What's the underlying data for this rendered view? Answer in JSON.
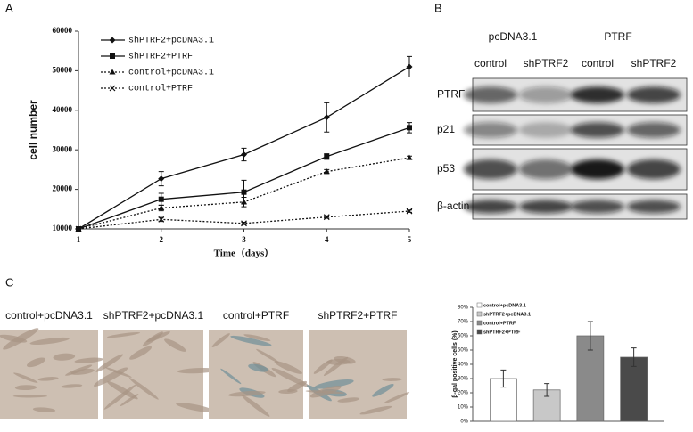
{
  "panels": {
    "a": "A",
    "b": "B",
    "c": "C"
  },
  "blot": {
    "groups": [
      "pcDNA3.1",
      "PTRF"
    ],
    "lanes": [
      "control",
      "shPTRF2",
      "control",
      "shPTRF2"
    ],
    "rows": [
      "PTRF",
      "p21",
      "p53",
      "β-actin"
    ]
  },
  "micrographs": [
    "control+pcDNA3.1",
    "shPTRF2+pcDNA3.1",
    "control+PTRF",
    "shPTRF2+PTRF"
  ],
  "chart_data": [
    {
      "type": "line",
      "x_label": "Time（days）",
      "y_label": "cell number",
      "x": [
        1,
        2,
        3,
        4,
        5
      ],
      "xlim": [
        1,
        5
      ],
      "xticks": [
        1,
        2,
        3,
        4,
        5
      ],
      "ylim": [
        10000,
        60000
      ],
      "yticks": [
        10000,
        20000,
        30000,
        40000,
        50000,
        60000
      ],
      "legend": "upper left",
      "series": [
        {
          "name": "shPTRF2+pcDNA3.1",
          "color": "#111111",
          "marker": "diamond",
          "dashed": false,
          "values": [
            10000,
            22700,
            28800,
            38200,
            51000
          ],
          "errors": [
            0,
            1800,
            1600,
            3700,
            2600
          ]
        },
        {
          "name": "shPTRF2+PTRF",
          "color": "#111111",
          "marker": "square",
          "dashed": false,
          "values": [
            10000,
            17500,
            19300,
            28300,
            35600
          ],
          "errors": [
            0,
            1500,
            3000,
            700,
            1300
          ]
        },
        {
          "name": "control+pcDNA3.1",
          "color": "#111111",
          "marker": "triangle",
          "dashed": true,
          "values": [
            10000,
            15300,
            16800,
            24500,
            28000
          ],
          "errors": [
            0,
            700,
            1200,
            500,
            400
          ]
        },
        {
          "name": "control+PTRF",
          "color": "#111111",
          "marker": "x",
          "dashed": true,
          "values": [
            10000,
            12400,
            11400,
            13000,
            14500
          ],
          "errors": [
            0,
            500,
            300,
            300,
            300
          ]
        }
      ]
    },
    {
      "type": "bar",
      "y_label": "β-gal positive cells (%)",
      "categories": [
        null
      ],
      "ylim": [
        0,
        80
      ],
      "yticks": [
        {
          "value": 0,
          "label": "0%"
        },
        {
          "value": 10,
          "label": "10%"
        },
        {
          "value": 20,
          "label": "20%"
        },
        {
          "value": 30,
          "label": "30%"
        },
        {
          "value": 40,
          "label": "40%"
        },
        {
          "value": 50,
          "label": "50%"
        },
        {
          "value": 60,
          "label": "60%"
        },
        {
          "value": 70,
          "label": "70%"
        },
        {
          "value": 80,
          "label": "80%"
        }
      ],
      "legend": "upper left",
      "series": [
        {
          "name": "control+pcDNA3.1",
          "color": "#ffffff",
          "values": [
            30
          ],
          "errors": [
            6
          ]
        },
        {
          "name": "shPTRF2+pcDNA3.1",
          "color": "#c8c8c8",
          "values": [
            22
          ],
          "errors": [
            4.5
          ]
        },
        {
          "name": "control+PTRF",
          "color": "#8a8a8a",
          "values": [
            60
          ],
          "errors": [
            10
          ]
        },
        {
          "name": "shPTRF2+PTRF",
          "color": "#4a4a4a",
          "values": [
            45
          ],
          "errors": [
            6.5
          ]
        }
      ]
    }
  ]
}
